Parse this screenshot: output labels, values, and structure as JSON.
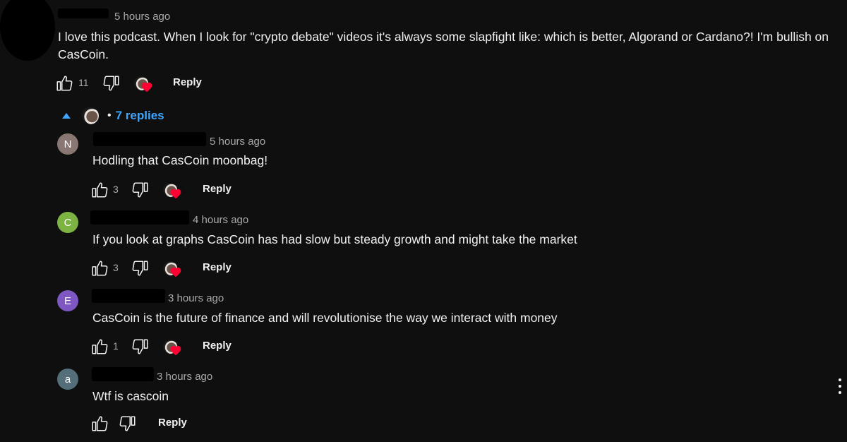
{
  "top_comment": {
    "time": "5 hours ago",
    "text": "I love this podcast.  When I look for \"crypto debate\" videos it's always some slapfight like:  which is better, Algorand or Cardano?!  I'm bullish on CasCoin.",
    "likes": "11",
    "reply_label": "Reply"
  },
  "replies_toggle": {
    "label": "7 replies",
    "bullet": "•"
  },
  "replies": [
    {
      "initial": "N",
      "avatar_color": "#8a7672",
      "time": "5 hours ago",
      "text": "Hodling that CasCoin moonbag!",
      "likes": "3",
      "reply_label": "Reply"
    },
    {
      "initial": "C",
      "avatar_color": "#7cb342",
      "time": "4 hours ago",
      "text": "If you look at graphs CasCoin has had slow but steady growth and might take the market",
      "likes": "3",
      "reply_label": "Reply"
    },
    {
      "initial": "E",
      "avatar_color": "#7e57c2",
      "time": "3 hours ago",
      "text": "CasCoin is the future of finance and will revolutionise the way we interact with money",
      "likes": "1",
      "reply_label": "Reply"
    },
    {
      "initial": "a",
      "avatar_color": "#546e7a",
      "time": "3 hours ago",
      "text": "Wtf is cascoin",
      "likes": "",
      "reply_label": "Reply"
    }
  ],
  "icons": {
    "like": "thumbs-up-icon",
    "dislike": "thumbs-down-icon",
    "creator_heart": "creator-heart-icon",
    "collapse": "caret-up-icon",
    "more": "more-vertical-icon"
  },
  "colors": {
    "background": "#0f0f0f",
    "link": "#3ea6ff",
    "heart": "#ff0033",
    "meta": "#aaaaaa"
  }
}
